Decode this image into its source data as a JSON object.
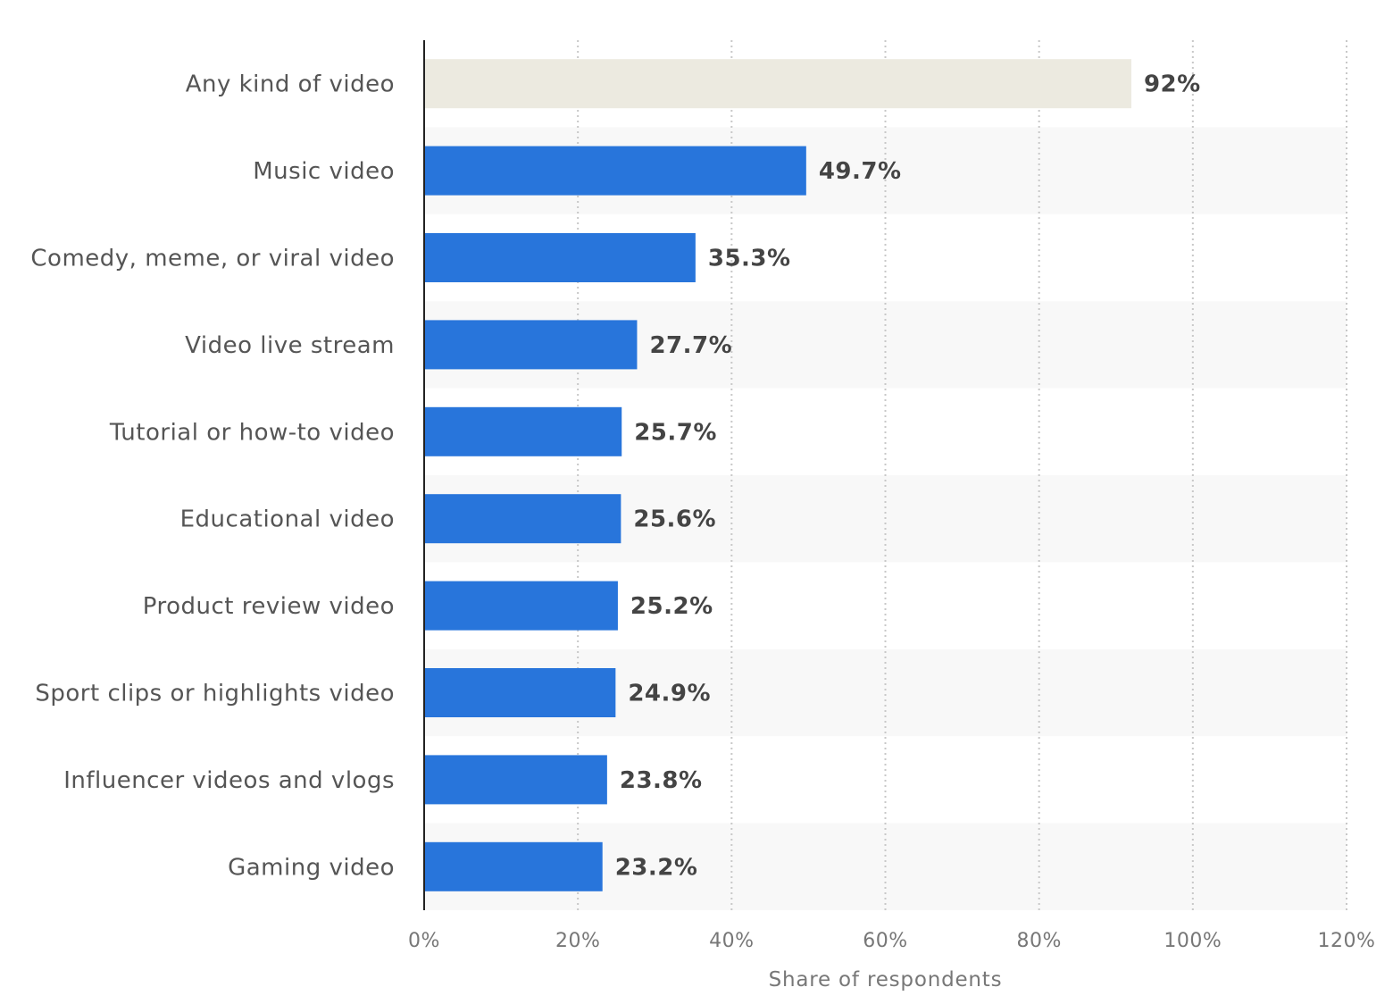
{
  "chart_data": {
    "type": "bar",
    "orientation": "horizontal",
    "categories": [
      "Any kind of video",
      "Music video",
      "Comedy, meme, or viral video",
      "Video live stream",
      "Tutorial or how-to video",
      "Educational video",
      "Product review video",
      "Sport clips or highlights video",
      "Influencer videos and vlogs",
      "Gaming video"
    ],
    "values": [
      92,
      49.7,
      35.3,
      27.7,
      25.7,
      25.6,
      25.2,
      24.9,
      23.8,
      23.2
    ],
    "value_labels": [
      "92%",
      "49.7%",
      "35.3%",
      "27.7%",
      "25.7%",
      "25.6%",
      "25.2%",
      "24.9%",
      "23.8%",
      "23.2%"
    ],
    "xlabel": "Share of respondents",
    "ylabel": "",
    "xlim": [
      0,
      120
    ],
    "x_ticks": [
      0,
      20,
      40,
      60,
      80,
      100,
      120
    ],
    "x_tick_labels": [
      "0%",
      "20%",
      "40%",
      "60%",
      "80%",
      "100%",
      "120%"
    ],
    "grid": "vertical dotted",
    "bar_colors": [
      "#ECEAE0",
      "#2875DB",
      "#2875DB",
      "#2875DB",
      "#2875DB",
      "#2875DB",
      "#2875DB",
      "#2875DB",
      "#2875DB",
      "#2875DB"
    ],
    "band_color": "#F8F8F8"
  }
}
